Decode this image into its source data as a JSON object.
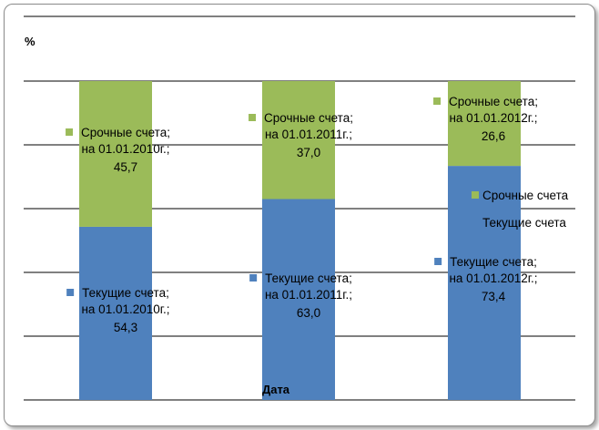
{
  "chart_data": {
    "type": "bar",
    "stacked": true,
    "percent": true,
    "title": "",
    "ylabel": "%",
    "xlabel": "Дата",
    "ylim": [
      0,
      100
    ],
    "grid": true,
    "legend_position": "right",
    "categories": [
      "на 01.01.2010г.",
      "на 01.01.2011г.",
      "на 01.01.2012г."
    ],
    "series": [
      {
        "name": "Текущие счета",
        "color": "#4f81bd",
        "values": [
          54.3,
          63.0,
          73.4
        ],
        "value_labels": [
          "54,3",
          "63,0",
          "73,4"
        ]
      },
      {
        "name": "Срочные счета",
        "color": "#9bbb59",
        "values": [
          45.7,
          37.0,
          26.6
        ],
        "value_labels": [
          "45,7",
          "37,0",
          "26,6"
        ]
      }
    ]
  }
}
